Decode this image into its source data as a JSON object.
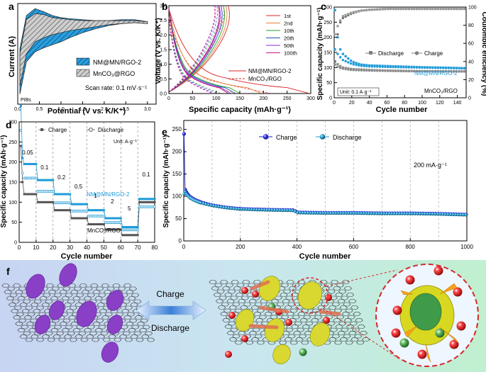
{
  "panels": {
    "a": {
      "letter": "a",
      "ylabel": "Current (A)",
      "xlabel": "Potential (V vs. K/K⁺)",
      "xticks": [
        "0.0",
        "0.5",
        "1.0",
        "1.5",
        "2.0",
        "2.5",
        "3.0"
      ],
      "legend": [
        "NM@MN/RGO-2",
        "MnCO₃@RGO"
      ],
      "scan_rate": "Scan rate: 0.1 mV·s⁻¹",
      "corner": "PIBs"
    },
    "b": {
      "letter": "b",
      "ylabel": "Voltage (V vs. K/K⁺)",
      "xlabel": "Specific capacity (mAh·g⁻¹)",
      "xticks": [
        "0",
        "50",
        "100",
        "150",
        "200",
        "250",
        "300"
      ],
      "yticks": [
        "0.0",
        "0.5",
        "1.0",
        "1.5",
        "2.0",
        "2.5",
        "3.0"
      ],
      "legend": [
        "1st",
        "2nd",
        "10th",
        "20th",
        "50th",
        "100th"
      ],
      "legend_colors": [
        "#d62728",
        "#e8833a",
        "#2ca02c",
        "#1f4fb4",
        "#8a2be2",
        "#c71585"
      ],
      "labels": [
        "NM@MN/RGO-2",
        "MnCO₃/RGO"
      ]
    },
    "c": {
      "letter": "c",
      "ylabel": "Specific capacity (mAh·g⁻¹)",
      "y2label": "Coulombic efficiency (%)",
      "xlabel": "Cycle number",
      "xticks": [
        "0",
        "20",
        "40",
        "60",
        "80",
        "100",
        "120",
        "140"
      ],
      "yticks": [
        "0",
        "50",
        "100",
        "150",
        "200",
        "250",
        "300"
      ],
      "y2ticks": [
        "0",
        "20",
        "40",
        "60",
        "80",
        "100"
      ],
      "legend": [
        "Discharge",
        "Charge"
      ],
      "labels": [
        "NM@MN/RGO-2",
        "MnCO₃/RGO"
      ],
      "unit": "Unit: 0.1 A·g⁻¹"
    },
    "d": {
      "letter": "d",
      "ylabel": "Specific capacity (mAh·g⁻¹)",
      "xlabel": "Cycle number",
      "xticks": [
        "0",
        "10",
        "20",
        "30",
        "40",
        "50",
        "60",
        "70",
        "80"
      ],
      "yticks": [
        "0",
        "50",
        "100",
        "150",
        "200",
        "250",
        "300"
      ],
      "legend": [
        "Charge",
        "Discharge"
      ],
      "unit": "Unit: A·g⁻¹",
      "rates": [
        "0.05",
        "0.1",
        "0.2",
        "0.5",
        "1",
        "2",
        "5",
        "0.1"
      ],
      "labels": [
        "NM@MN/RGO-2",
        "MnCO₃/RGO"
      ]
    },
    "e": {
      "letter": "e",
      "ylabel": "Specific capacity (mAh·g⁻¹)",
      "xlabel": "Cycle number",
      "xticks": [
        "0",
        "200",
        "400",
        "600",
        "800",
        "1000"
      ],
      "yticks": [
        "0",
        "50",
        "100",
        "150",
        "200",
        "250"
      ],
      "legend": [
        "Charge",
        "Discharge"
      ],
      "rate": "200 mA·g⁻¹"
    },
    "f": {
      "letter": "f",
      "charge": "Charge",
      "discharge": "Discharge"
    }
  },
  "colors": {
    "blue": "#1f9bd7",
    "gray": "#7f7f7f",
    "navy": "#1a1ad0",
    "purple": "#8a3fc7",
    "yellow": "#d8d830",
    "red": "#d62828"
  },
  "chart_data": [
    {
      "panel": "a",
      "type": "area",
      "xlabel": "Potential (V vs. K/K⁺)",
      "ylabel": "Current (A)",
      "xlim": [
        0,
        3.2
      ],
      "series": [
        {
          "name": "NM@MN/RGO-2",
          "x": [
            0.05,
            0.2,
            0.4,
            0.6,
            0.8,
            1.0,
            1.2,
            1.5,
            1.8,
            2.1,
            2.4,
            2.7,
            3.0
          ],
          "upper": [
            0.55,
            0.88,
            0.95,
            0.92,
            0.88,
            0.86,
            0.85,
            0.84,
            0.83,
            0.83,
            0.84,
            0.84,
            0.82
          ],
          "lower": [
            0.1,
            0.42,
            0.52,
            0.56,
            0.59,
            0.62,
            0.66,
            0.71,
            0.75,
            0.78,
            0.8,
            0.81,
            0.8
          ]
        },
        {
          "name": "MnCO₃@RGO",
          "x": [
            0.05,
            0.2,
            0.4,
            0.6,
            0.8,
            1.0,
            1.2,
            1.5,
            1.8,
            2.1,
            2.4,
            2.7,
            3.0
          ],
          "upper": [
            0.5,
            0.84,
            0.9,
            0.89,
            0.86,
            0.85,
            0.84,
            0.83,
            0.83,
            0.83,
            0.83,
            0.83,
            0.82
          ],
          "lower": [
            0.18,
            0.5,
            0.62,
            0.66,
            0.69,
            0.71,
            0.73,
            0.75,
            0.77,
            0.79,
            0.8,
            0.81,
            0.8
          ]
        }
      ]
    },
    {
      "panel": "b",
      "type": "line",
      "xlabel": "Specific capacity (mAh·g⁻¹)",
      "ylabel": "Voltage (V vs. K/K⁺)",
      "xlim": [
        0,
        300
      ],
      "ylim": [
        0,
        3.0
      ],
      "series": [
        {
          "name": "1st",
          "discharge_end": 295,
          "charge_end": 125
        },
        {
          "name": "2nd",
          "discharge_end": 195,
          "charge_end": 120
        },
        {
          "name": "10th",
          "discharge_end": 150,
          "charge_end": 115
        },
        {
          "name": "20th",
          "discharge_end": 140,
          "charge_end": 110
        },
        {
          "name": "50th",
          "discharge_end": 130,
          "charge_end": 106
        },
        {
          "name": "100th",
          "discharge_end": 125,
          "charge_end": 104
        }
      ]
    },
    {
      "panel": "c",
      "type": "scatter",
      "xlabel": "Cycle number",
      "ylabel": "Specific capacity (mAh·g⁻¹)",
      "xlim": [
        0,
        150
      ],
      "ylim": [
        0,
        300
      ],
      "y2lim": [
        0,
        100
      ],
      "series": [
        {
          "name": "NM@MN/RGO-2 Discharge",
          "x": [
            1,
            5,
            10,
            20,
            30,
            40,
            60,
            80,
            100,
            120,
            150
          ],
          "y": [
            290,
            170,
            145,
            120,
            110,
            107,
            105,
            103,
            101,
            100,
            98
          ]
        },
        {
          "name": "NM@MN/RGO-2 Charge",
          "x": [
            1,
            5,
            10,
            20,
            30,
            40,
            60,
            80,
            100,
            120,
            150
          ],
          "y": [
            160,
            140,
            125,
            112,
            106,
            104,
            102,
            101,
            100,
            99,
            97
          ]
        },
        {
          "name": "MnCO₃/RGO Discharge",
          "x": [
            1,
            5,
            10,
            20,
            40,
            60,
            80,
            100,
            120,
            150
          ],
          "y": [
            120,
            108,
            100,
            95,
            92,
            90,
            89,
            88,
            88,
            87
          ]
        },
        {
          "name": "MnCO₃/RGO Charge",
          "x": [
            1,
            5,
            10,
            20,
            40,
            60,
            80,
            100,
            120,
            150
          ],
          "y": [
            110,
            100,
            96,
            92,
            90,
            89,
            88,
            88,
            87,
            87
          ]
        },
        {
          "name": "Coulombic efficiency NM@MN/RGO-2",
          "x": [
            1,
            5,
            10,
            20,
            30,
            40,
            60,
            100,
            150
          ],
          "y": [
            40,
            80,
            88,
            93,
            96,
            97,
            98,
            98,
            98
          ]
        },
        {
          "name": "Coulombic efficiency MnCO₃/RGO",
          "x": [
            1,
            5,
            10,
            20,
            30,
            40,
            60,
            100,
            150
          ],
          "y": [
            70,
            82,
            90,
            94,
            96,
            97,
            98,
            98,
            98
          ]
        }
      ]
    },
    {
      "panel": "d",
      "type": "scatter",
      "xlabel": "Cycle number",
      "ylabel": "Specific capacity (mAh·g⁻¹)",
      "xlim": [
        0,
        80
      ],
      "ylim": [
        0,
        300
      ],
      "rate_steps": [
        {
          "rate": "0.05",
          "cycles": [
            0,
            10
          ],
          "nm": 195,
          "mn": 120
        },
        {
          "rate": "0.1",
          "cycles": [
            10,
            20
          ],
          "nm": 155,
          "mn": 100
        },
        {
          "rate": "0.2",
          "cycles": [
            20,
            30
          ],
          "nm": 120,
          "mn": 80
        },
        {
          "rate": "0.5",
          "cycles": [
            30,
            40
          ],
          "nm": 95,
          "mn": 60
        },
        {
          "rate": "1",
          "cycles": [
            40,
            50
          ],
          "nm": 80,
          "mn": 45
        },
        {
          "rate": "2",
          "cycles": [
            50,
            60
          ],
          "nm": 60,
          "mn": 32
        },
        {
          "rate": "5",
          "cycles": [
            60,
            70
          ],
          "nm": 38,
          "mn": 18
        },
        {
          "rate": "0.1",
          "cycles": [
            70,
            80
          ],
          "nm": 108,
          "mn": 100
        }
      ]
    },
    {
      "panel": "e",
      "type": "scatter",
      "xlabel": "Cycle number",
      "ylabel": "Specific capacity (mAh·g⁻¹)",
      "xlim": [
        0,
        1000
      ],
      "ylim": [
        0,
        270
      ],
      "series": [
        {
          "name": "Charge",
          "x": [
            1,
            5,
            10,
            20,
            40,
            60,
            100,
            150,
            200,
            300,
            390,
            400,
            500,
            600,
            700,
            800,
            900,
            1000
          ],
          "y": [
            240,
            115,
            108,
            100,
            92,
            87,
            80,
            75,
            72,
            70,
            69,
            64,
            63,
            63,
            62,
            62,
            61,
            59
          ]
        },
        {
          "name": "Discharge",
          "x": [
            1,
            5,
            10,
            20,
            40,
            60,
            100,
            150,
            200,
            300,
            390,
            400,
            500,
            600,
            700,
            800,
            900,
            1000
          ],
          "y": [
            105,
            110,
            104,
            97,
            90,
            85,
            79,
            74,
            71,
            69,
            68,
            63,
            62,
            62,
            61,
            61,
            60,
            58
          ]
        }
      ]
    }
  ]
}
